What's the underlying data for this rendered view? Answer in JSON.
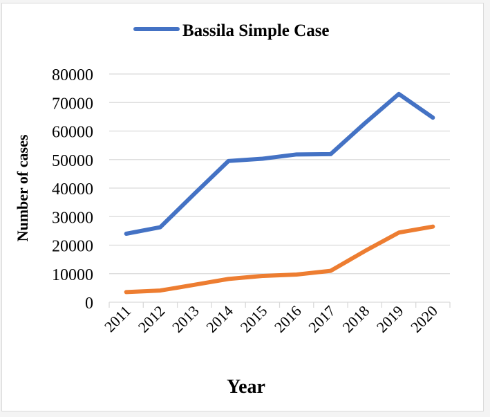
{
  "chart_data": {
    "type": "line",
    "title": "",
    "xlabel": "Year",
    "ylabel": "Number of cases",
    "categories": [
      "2011",
      "2012",
      "2013",
      "2014",
      "2015",
      "2016",
      "2017",
      "2018",
      "2019",
      "2020"
    ],
    "ylim": [
      0,
      80000
    ],
    "yticks": [
      "0",
      "10000",
      "20000",
      "30000",
      "40000",
      "50000",
      "60000",
      "70000",
      "80000"
    ],
    "grid": true,
    "legend_position": "top",
    "series": [
      {
        "name": "Bassila Simple Case",
        "color": "#4472c4",
        "values": [
          24000,
          26300,
          38000,
          49500,
          50300,
          51800,
          51900,
          62700,
          73000,
          64700
        ]
      },
      {
        "color": "#ed7d31",
        "values": [
          3550,
          4100,
          6100,
          8150,
          9200,
          9700,
          11000,
          17900,
          24400,
          26500
        ]
      }
    ]
  }
}
